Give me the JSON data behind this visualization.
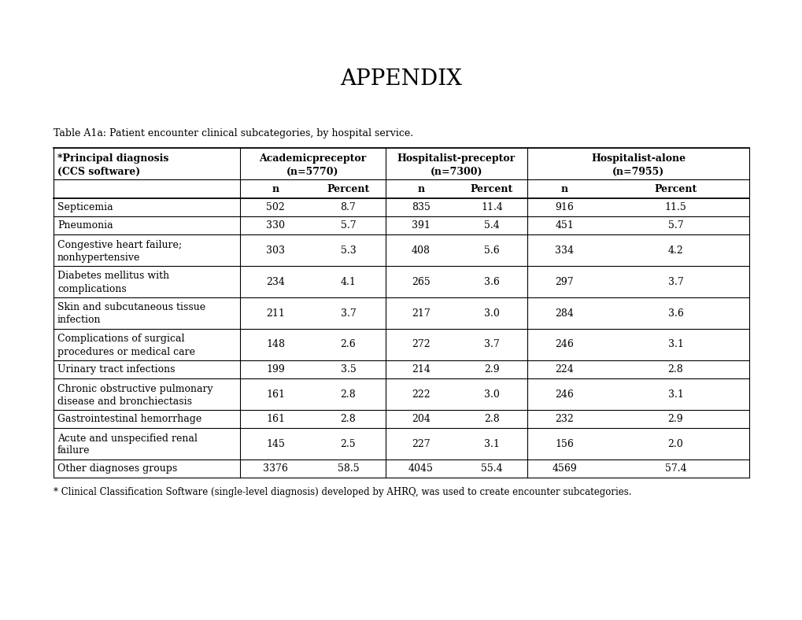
{
  "title": "APPENDIX",
  "table_caption": "Table A1a: Patient encounter clinical subcategories, by hospital service.",
  "footnote": "* Clinical Classification Software (single-level diagnosis) developed by AHRQ, was used to create encounter subcategories.",
  "rows": [
    [
      "Septicemia",
      "502",
      "8.7",
      "835",
      "11.4",
      "916",
      "11.5"
    ],
    [
      "Pneumonia",
      "330",
      "5.7",
      "391",
      "5.4",
      "451",
      "5.7"
    ],
    [
      "Congestive heart failure;\nnonhypertensive",
      "303",
      "5.3",
      "408",
      "5.6",
      "334",
      "4.2"
    ],
    [
      "Diabetes mellitus with\ncomplications",
      "234",
      "4.1",
      "265",
      "3.6",
      "297",
      "3.7"
    ],
    [
      "Skin and subcutaneous tissue\ninfection",
      "211",
      "3.7",
      "217",
      "3.0",
      "284",
      "3.6"
    ],
    [
      "Complications of surgical\nprocedures or medical care",
      "148",
      "2.6",
      "272",
      "3.7",
      "246",
      "3.1"
    ],
    [
      "Urinary tract infections",
      "199",
      "3.5",
      "214",
      "2.9",
      "224",
      "2.8"
    ],
    [
      "Chronic obstructive pulmonary\ndisease and bronchiectasis",
      "161",
      "2.8",
      "222",
      "3.0",
      "246",
      "3.1"
    ],
    [
      "Gastrointestinal hemorrhage",
      "161",
      "2.8",
      "204",
      "2.8",
      "232",
      "2.9"
    ],
    [
      "Acute and unspecified renal\nfailure",
      "145",
      "2.5",
      "227",
      "3.1",
      "156",
      "2.0"
    ],
    [
      "Other diagnoses groups",
      "3376",
      "58.5",
      "4045",
      "55.4",
      "4569",
      "57.4"
    ]
  ],
  "bg_color": "#ffffff",
  "text_color": "#000000",
  "title_fontsize": 20,
  "caption_fontsize": 9,
  "header_fontsize": 9,
  "cell_fontsize": 9,
  "footnote_fontsize": 8.5,
  "header1_diag": "*Principal diagnosis\n(CCS software)",
  "header1_acad": "Academicpreceptor\n(n=5770)",
  "header1_hosp_pre": "Hospitalist-preceptor\n(n=7300)",
  "header1_hosp_alone": "Hospitalist-alone\n(n=7955)",
  "header2_labels": [
    "n",
    "Percent",
    "n",
    "Percent",
    "n",
    "Percent"
  ]
}
